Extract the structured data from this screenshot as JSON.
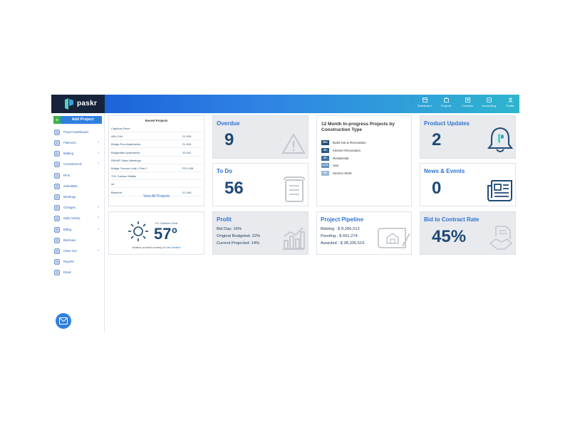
{
  "app": {
    "brand": "paskr"
  },
  "nav": [
    {
      "label": "Dashboard",
      "icon": "dashboard-icon"
    },
    {
      "label": "Projects",
      "icon": "projects-icon"
    },
    {
      "label": "Contacts",
      "icon": "contacts-icon"
    },
    {
      "label": "Accounting",
      "icon": "accounting-icon"
    },
    {
      "label": "Profile",
      "icon": "profile-icon"
    }
  ],
  "sidebar": {
    "add_project": "Add Project",
    "items": [
      {
        "label": "Project Dashboard",
        "icon": "dashboard-icon",
        "chevron": false
      },
      {
        "label": "Planroom",
        "icon": "planroom-icon",
        "chevron": true
      },
      {
        "label": "Bidding",
        "icon": "gavel-icon",
        "chevron": true
      },
      {
        "label": "Commitments",
        "icon": "handshake-icon",
        "chevron": true
      },
      {
        "label": "RFIs",
        "icon": "question-icon",
        "chevron": false
      },
      {
        "label": "Submittals",
        "icon": "submittal-icon",
        "chevron": false
      },
      {
        "label": "Meetings",
        "icon": "meetings-icon",
        "chevron": false
      },
      {
        "label": "Changes",
        "icon": "changes-icon",
        "chevron": true
      },
      {
        "label": "Daily Activity",
        "icon": "activity-icon",
        "chevron": true
      },
      {
        "label": "Billing",
        "icon": "billing-icon",
        "chevron": true
      },
      {
        "label": "Briefcase",
        "icon": "briefcase-icon",
        "chevron": false
      },
      {
        "label": "Close Out",
        "icon": "close-out-icon",
        "chevron": true
      },
      {
        "label": "Reports",
        "icon": "reports-icon",
        "chevron": false
      },
      {
        "label": "Email",
        "icon": "email-icon",
        "chevron": false
      }
    ]
  },
  "recent_projects": {
    "title": "Recent Projects",
    "rows": [
      {
        "name": "Captions Reno",
        "code": ""
      },
      {
        "name": "Alf's Grill",
        "code": "21-026"
      },
      {
        "name": "Bridge Run Apartments",
        "code": "21-034"
      },
      {
        "name": "Bridgedale Apartments",
        "code": "19-001"
      },
      {
        "name": "PASKR Sales Meetings",
        "code": ""
      },
      {
        "name": "Bridge Terrace Lofts 1 Res 2",
        "code": "P21-048"
      },
      {
        "name": "7/11 Calmon Malibu",
        "code": ""
      },
      {
        "name": "sd",
        "code": ""
      },
      {
        "name": "Barefoot",
        "code": "21-045"
      }
    ],
    "view_all": "View All Projects"
  },
  "overdue": {
    "title": "Overdue",
    "value": "9"
  },
  "todo": {
    "title": "To Do",
    "value": "56"
  },
  "in_progress": {
    "title": "12 Month In-progress Projects by Construction Type",
    "items": [
      {
        "pct": "56%",
        "label": "Build Out & Renovation",
        "color": "#1f4a75"
      },
      {
        "pct": "3%",
        "label": "Kitchen Renovation",
        "color": "#2a5a8a"
      },
      {
        "pct": "2%",
        "label": "Residential",
        "color": "#3a6ea3"
      },
      {
        "pct": "0.1%",
        "label": "new",
        "color": "#6a92bd"
      },
      {
        "pct": "0%",
        "label": "Service Work",
        "color": "#9ab8d6"
      }
    ]
  },
  "product_updates": {
    "title": "Product Updates",
    "value": "2"
  },
  "news_events": {
    "title": "News & Events",
    "value": "0"
  },
  "weather": {
    "date": "Fri, October 22nd",
    "temp": "57°",
    "credit": "Weather provided courtesy of",
    "credit_link": "Dark Weather"
  },
  "profit": {
    "title": "Profit",
    "bid_day": "Bid Day: 16%",
    "original": "Original Budgeted: 22%",
    "current": "Current Projected: 14%"
  },
  "pipeline": {
    "title": "Project Pipeline",
    "bidding": "Bidding  : $ 8,266,512",
    "pending": "Pending  : $ 691,274",
    "awarded": "Awarded : $ 38,330,519"
  },
  "bid_rate": {
    "title": "Bid to Contract Rate",
    "value": "45%"
  }
}
